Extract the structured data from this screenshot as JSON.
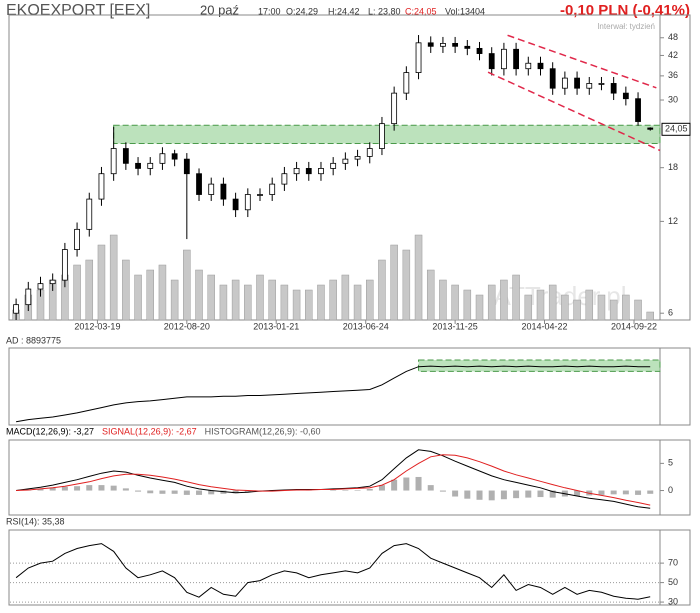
{
  "chart_data": [
    {
      "type": "candlestick",
      "title": "EKOEXPORT [EEX]",
      "header": {
        "date": "20 paź",
        "time": "17:00",
        "open": "O:24,29",
        "high": "H:24,42",
        "low": "L: 23,80",
        "close": "C:24,05",
        "volume": "Vol:13404",
        "change": "-0,10 PLN (-0,41%)",
        "interval": "Interwał: tydzień",
        "watermark": "ATTrader.pl"
      },
      "log": true,
      "ylim": [
        5.7,
        57
      ],
      "yticks": [
        6,
        12,
        18,
        30,
        36,
        42,
        48
      ],
      "xlim": [
        -0.5,
        52.8
      ],
      "xticks": [
        {
          "value": 6.67,
          "label": "2012-03-19"
        },
        {
          "value": 14,
          "label": "2012-08-20"
        },
        {
          "value": 21.33,
          "label": "2013-01-21"
        },
        {
          "value": 28.67,
          "label": "2013-06-24"
        },
        {
          "value": 36,
          "label": "2013-11-25"
        },
        {
          "value": 43.33,
          "label": "2014-04-22"
        },
        {
          "value": 50.67,
          "label": "2014-09-22"
        }
      ],
      "open": [
        6.0,
        6.4,
        7.2,
        7.5,
        7.7,
        9.7,
        11.3,
        14.2,
        17.2,
        20.8,
        18.6,
        17.9,
        18.6,
        20.0,
        19.2,
        17.2,
        14.7,
        15.9,
        14.2,
        13.1,
        14.7,
        14.7,
        15.9,
        17.2,
        17.9,
        17.2,
        17.9,
        18.6,
        19.2,
        19.6,
        20.8,
        25.1,
        31.6,
        36.9,
        46.2,
        45.0,
        46.0,
        45.0,
        44.3,
        42.6,
        38.0,
        44.0,
        38.0,
        39.6,
        38.0,
        32.8,
        35.4,
        32.8,
        34.0,
        34.0,
        31.6,
        30.3,
        24.29
      ],
      "high": [
        6.7,
        7.6,
        7.9,
        8.1,
        10.2,
        11.9,
        14.9,
        18.1,
        24.5,
        21.8,
        19.5,
        19.5,
        21,
        20.6,
        20.1,
        17.9,
        16.7,
        16.7,
        14.9,
        15.4,
        15.4,
        16.7,
        18.1,
        18.8,
        18.8,
        18.8,
        19.5,
        20.2,
        20.6,
        21.8,
        26.4,
        33.2,
        38.7,
        49,
        48.5,
        48.3,
        48.3,
        47.2,
        46.5,
        44.7,
        46.2,
        46.2,
        41.6,
        41.6,
        39.9,
        37.2,
        37.2,
        35.7,
        35.7,
        35.7,
        33.2,
        31.8,
        24.42
      ],
      "low": [
        5.7,
        6.1,
        6.8,
        7.1,
        7.3,
        9.2,
        10.7,
        13.5,
        16.3,
        17.7,
        17.0,
        17.0,
        17.7,
        18.2,
        10.5,
        14.0,
        14.0,
        13.5,
        12.4,
        12.4,
        14.0,
        14.0,
        15.1,
        16.3,
        16.3,
        16.3,
        17.0,
        17.7,
        18.2,
        18.6,
        19.8,
        23.8,
        30.0,
        35.1,
        42.8,
        42.8,
        42.8,
        42.1,
        40.5,
        36.1,
        36.1,
        36.1,
        36.1,
        36.1,
        31.2,
        31.2,
        31.2,
        31.2,
        32.3,
        30.0,
        28.8,
        24.7,
        23.8
      ],
      "close": [
        6.4,
        7.2,
        7.5,
        7.7,
        9.7,
        11.3,
        14.2,
        17.2,
        20.8,
        18.6,
        17.9,
        18.6,
        20.0,
        19.2,
        17.2,
        14.7,
        15.9,
        14.2,
        13.1,
        14.7,
        14.7,
        15.9,
        17.2,
        17.9,
        17.2,
        17.9,
        18.6,
        19.2,
        19.6,
        20.8,
        25.1,
        31.6,
        36.9,
        46.2,
        45.0,
        46.0,
        45.0,
        44.3,
        42.6,
        38.0,
        44.0,
        38.0,
        39.6,
        38.0,
        32.8,
        35.4,
        32.8,
        34.0,
        34.0,
        31.6,
        30.3,
        25.5,
        24.05
      ],
      "volume": [
        10,
        25,
        30,
        40,
        45,
        55,
        60,
        75,
        85,
        60,
        45,
        50,
        55,
        40,
        70,
        50,
        45,
        35,
        40,
        35,
        45,
        40,
        35,
        30,
        30,
        35,
        40,
        45,
        35,
        40,
        60,
        75,
        70,
        85,
        50,
        40,
        35,
        30,
        25,
        35,
        40,
        45,
        25,
        30,
        35,
        25,
        20,
        30,
        25,
        20,
        25,
        20,
        8
      ],
      "vlim": [
        0,
        100
      ],
      "volume_color": "#c8c8c8",
      "zone": {
        "x": [
          8,
          52.8
        ],
        "y": [
          21.6,
          24.8
        ],
        "color": "#8fcf8f"
      },
      "channel": [
        {
          "x": [
            40.3,
            52.5
          ],
          "y": [
            48.9,
            32.9
          ]
        },
        {
          "x": [
            38.7,
            52.8
          ],
          "y": [
            37,
            20.5
          ]
        }
      ],
      "channel_color": "#e0284a",
      "last": {
        "value": 24.05,
        "label": "24,05"
      }
    },
    {
      "type": "line",
      "title": "AD : 8893775",
      "ylim": [
        0,
        115
      ],
      "color": "#000000",
      "values": [
        5,
        8,
        10,
        12,
        15,
        18,
        22,
        26,
        30,
        33,
        35,
        36,
        38,
        40,
        42,
        42,
        42,
        43,
        43,
        44,
        44,
        45,
        46,
        47,
        48,
        49,
        50,
        51,
        52,
        53,
        60,
        70,
        80,
        87,
        88,
        87,
        88,
        87,
        88,
        87,
        88,
        87,
        88,
        87,
        87,
        88,
        87,
        88,
        87,
        87,
        88,
        87,
        87
      ],
      "zone": {
        "x": [
          33,
          52.8
        ],
        "y": [
          80,
          97
        ],
        "color": "#8fcf8f"
      }
    },
    {
      "type": "macd",
      "ylim": [
        -4.5,
        9.3
      ],
      "yticks": [
        0,
        5
      ],
      "series": [
        {
          "name": "MACD(12,26,9): -3,27",
          "color": "#000000",
          "values": [
            0,
            0.3,
            0.6,
            1.0,
            1.5,
            2.0,
            2.6,
            3.2,
            3.6,
            3.4,
            2.8,
            2.3,
            1.9,
            1.5,
            0.8,
            0.3,
            0.0,
            -0.2,
            -0.4,
            -0.3,
            -0.1,
            0,
            0.1,
            0.2,
            0.2,
            0.2,
            0.3,
            0.4,
            0.5,
            0.8,
            2.0,
            4.0,
            6.0,
            7.5,
            7.2,
            6.4,
            5.4,
            4.5,
            3.6,
            2.7,
            2.0,
            1.5,
            1.0,
            0.5,
            -0.2,
            -0.6,
            -1.0,
            -1.4,
            -1.7,
            -2.0,
            -2.5,
            -3.0,
            -3.27
          ]
        },
        {
          "name": "SIGNAL(12,26,9): -2,67",
          "color": "#e02020",
          "values": [
            0,
            0.1,
            0.3,
            0.5,
            0.8,
            1.2,
            1.6,
            2.2,
            2.7,
            3.0,
            3.0,
            2.8,
            2.5,
            2.1,
            1.6,
            1.1,
            0.7,
            0.4,
            0.1,
            0,
            -0.1,
            -0.1,
            0,
            0.1,
            0.1,
            0.2,
            0.2,
            0.3,
            0.4,
            0.5,
            1.0,
            2.0,
            3.6,
            5.0,
            6.2,
            6.6,
            6.5,
            6.0,
            5.3,
            4.5,
            3.6,
            2.9,
            2.3,
            1.7,
            1.1,
            0.5,
            0,
            -0.5,
            -0.9,
            -1.3,
            -1.8,
            -2.2,
            -2.67
          ]
        },
        {
          "name": "HISTOGRAM(12,26,9): -0,60",
          "color": "#b0b0b0",
          "values": [
            0,
            0.2,
            0.3,
            0.5,
            0.7,
            0.8,
            1.0,
            1.0,
            0.9,
            0.4,
            -0.2,
            -0.5,
            -0.6,
            -0.6,
            -0.8,
            -0.8,
            -0.7,
            -0.6,
            -0.5,
            -0.3,
            0,
            0.1,
            0.1,
            0.1,
            0.1,
            0,
            0.1,
            0.1,
            0.1,
            0.3,
            1.0,
            2.0,
            2.4,
            2.5,
            1.0,
            -0.2,
            -1.1,
            -1.5,
            -1.7,
            -1.8,
            -1.6,
            -1.4,
            -1.3,
            -1.2,
            -1.3,
            -1.1,
            -1.0,
            -0.9,
            -0.8,
            -0.7,
            -0.7,
            -0.8,
            -0.6
          ]
        }
      ]
    },
    {
      "type": "line",
      "title": "RSI(14): 35,38",
      "ylim": [
        27,
        104
      ],
      "yticks": [
        30,
        50,
        70
      ],
      "grid": true,
      "color": "#000000",
      "values": [
        55,
        65,
        70,
        72,
        80,
        85,
        88,
        90,
        82,
        65,
        55,
        58,
        62,
        55,
        40,
        35,
        45,
        38,
        36,
        50,
        52,
        58,
        62,
        60,
        55,
        58,
        60,
        62,
        60,
        65,
        80,
        88,
        90,
        85,
        75,
        70,
        65,
        60,
        55,
        45,
        58,
        42,
        48,
        45,
        38,
        45,
        38,
        42,
        40,
        36,
        34,
        33,
        35.38
      ]
    }
  ]
}
